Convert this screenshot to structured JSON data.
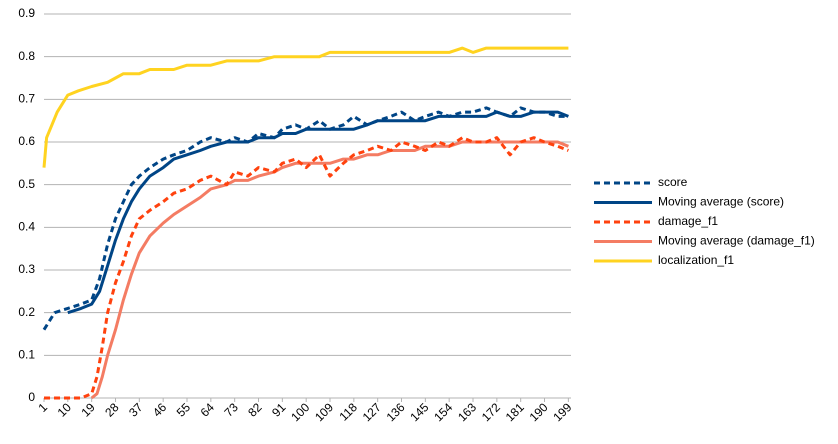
{
  "chart_data": {
    "type": "line",
    "title": "",
    "xlabel": "",
    "ylabel": "",
    "x_range": [
      1,
      200
    ],
    "x_tick_labels": [
      "1",
      "10",
      "19",
      "28",
      "37",
      "46",
      "55",
      "64",
      "73",
      "82",
      "91",
      "100",
      "109",
      "118",
      "127",
      "136",
      "145",
      "154",
      "163",
      "172",
      "181",
      "190",
      "199"
    ],
    "ylim": [
      0,
      0.9
    ],
    "y_ticks": [
      "0",
      "0.1",
      "0.2",
      "0.3",
      "0.4",
      "0.5",
      "0.6",
      "0.7",
      "0.8",
      "0.9"
    ],
    "grid": "horizontal",
    "legend": "right",
    "series": [
      {
        "name": "score",
        "style": "dashed",
        "color": "#004586",
        "points": [
          [
            1,
            0.16
          ],
          [
            5,
            0.2
          ],
          [
            10,
            0.21
          ],
          [
            15,
            0.22
          ],
          [
            19,
            0.23
          ],
          [
            22,
            0.28
          ],
          [
            25,
            0.36
          ],
          [
            28,
            0.42
          ],
          [
            31,
            0.46
          ],
          [
            34,
            0.5
          ],
          [
            37,
            0.52
          ],
          [
            41,
            0.54
          ],
          [
            46,
            0.56
          ],
          [
            50,
            0.57
          ],
          [
            55,
            0.58
          ],
          [
            60,
            0.6
          ],
          [
            64,
            0.61
          ],
          [
            70,
            0.6
          ],
          [
            73,
            0.61
          ],
          [
            78,
            0.6
          ],
          [
            82,
            0.62
          ],
          [
            88,
            0.61
          ],
          [
            91,
            0.63
          ],
          [
            96,
            0.64
          ],
          [
            100,
            0.63
          ],
          [
            105,
            0.65
          ],
          [
            109,
            0.63
          ],
          [
            114,
            0.64
          ],
          [
            118,
            0.66
          ],
          [
            123,
            0.64
          ],
          [
            127,
            0.65
          ],
          [
            132,
            0.66
          ],
          [
            136,
            0.67
          ],
          [
            141,
            0.65
          ],
          [
            145,
            0.66
          ],
          [
            150,
            0.67
          ],
          [
            154,
            0.66
          ],
          [
            159,
            0.67
          ],
          [
            163,
            0.67
          ],
          [
            168,
            0.68
          ],
          [
            172,
            0.67
          ],
          [
            177,
            0.66
          ],
          [
            181,
            0.68
          ],
          [
            186,
            0.67
          ],
          [
            190,
            0.67
          ],
          [
            195,
            0.66
          ],
          [
            199,
            0.66
          ]
        ]
      },
      {
        "name": "Moving average (score)",
        "style": "solid",
        "color": "#004586",
        "points": [
          [
            10,
            0.2
          ],
          [
            15,
            0.21
          ],
          [
            19,
            0.22
          ],
          [
            22,
            0.25
          ],
          [
            25,
            0.31
          ],
          [
            28,
            0.37
          ],
          [
            31,
            0.42
          ],
          [
            34,
            0.46
          ],
          [
            37,
            0.49
          ],
          [
            41,
            0.52
          ],
          [
            46,
            0.54
          ],
          [
            50,
            0.56
          ],
          [
            55,
            0.57
          ],
          [
            60,
            0.58
          ],
          [
            64,
            0.59
          ],
          [
            70,
            0.6
          ],
          [
            73,
            0.6
          ],
          [
            78,
            0.6
          ],
          [
            82,
            0.61
          ],
          [
            88,
            0.61
          ],
          [
            91,
            0.62
          ],
          [
            96,
            0.62
          ],
          [
            100,
            0.63
          ],
          [
            105,
            0.63
          ],
          [
            109,
            0.63
          ],
          [
            114,
            0.63
          ],
          [
            118,
            0.63
          ],
          [
            123,
            0.64
          ],
          [
            127,
            0.65
          ],
          [
            132,
            0.65
          ],
          [
            136,
            0.65
          ],
          [
            141,
            0.65
          ],
          [
            145,
            0.65
          ],
          [
            150,
            0.66
          ],
          [
            154,
            0.66
          ],
          [
            159,
            0.66
          ],
          [
            163,
            0.66
          ],
          [
            168,
            0.66
          ],
          [
            172,
            0.67
          ],
          [
            177,
            0.66
          ],
          [
            181,
            0.66
          ],
          [
            186,
            0.67
          ],
          [
            190,
            0.67
          ],
          [
            195,
            0.67
          ],
          [
            199,
            0.66
          ]
        ]
      },
      {
        "name": "damage_f1",
        "style": "dashed",
        "color": "#ff420e",
        "points": [
          [
            1,
            0.0
          ],
          [
            10,
            0.0
          ],
          [
            15,
            0.0
          ],
          [
            19,
            0.01
          ],
          [
            21,
            0.05
          ],
          [
            23,
            0.12
          ],
          [
            25,
            0.2
          ],
          [
            28,
            0.27
          ],
          [
            31,
            0.32
          ],
          [
            34,
            0.38
          ],
          [
            37,
            0.42
          ],
          [
            41,
            0.44
          ],
          [
            46,
            0.46
          ],
          [
            50,
            0.48
          ],
          [
            55,
            0.49
          ],
          [
            60,
            0.51
          ],
          [
            64,
            0.52
          ],
          [
            70,
            0.5
          ],
          [
            73,
            0.53
          ],
          [
            78,
            0.52
          ],
          [
            82,
            0.54
          ],
          [
            88,
            0.53
          ],
          [
            91,
            0.55
          ],
          [
            96,
            0.56
          ],
          [
            100,
            0.54
          ],
          [
            105,
            0.57
          ],
          [
            109,
            0.52
          ],
          [
            114,
            0.55
          ],
          [
            118,
            0.57
          ],
          [
            123,
            0.58
          ],
          [
            127,
            0.59
          ],
          [
            132,
            0.58
          ],
          [
            136,
            0.6
          ],
          [
            141,
            0.59
          ],
          [
            145,
            0.58
          ],
          [
            150,
            0.6
          ],
          [
            154,
            0.59
          ],
          [
            159,
            0.61
          ],
          [
            163,
            0.6
          ],
          [
            168,
            0.6
          ],
          [
            172,
            0.61
          ],
          [
            177,
            0.57
          ],
          [
            181,
            0.6
          ],
          [
            186,
            0.61
          ],
          [
            190,
            0.6
          ],
          [
            195,
            0.59
          ],
          [
            199,
            0.58
          ]
        ]
      },
      {
        "name": "Moving average (damage_f1)",
        "style": "solid",
        "color": "#f47c63",
        "points": [
          [
            19,
            0.0
          ],
          [
            21,
            0.01
          ],
          [
            23,
            0.05
          ],
          [
            25,
            0.1
          ],
          [
            28,
            0.16
          ],
          [
            31,
            0.23
          ],
          [
            34,
            0.29
          ],
          [
            37,
            0.34
          ],
          [
            41,
            0.38
          ],
          [
            46,
            0.41
          ],
          [
            50,
            0.43
          ],
          [
            55,
            0.45
          ],
          [
            60,
            0.47
          ],
          [
            64,
            0.49
          ],
          [
            70,
            0.5
          ],
          [
            73,
            0.51
          ],
          [
            78,
            0.51
          ],
          [
            82,
            0.52
          ],
          [
            88,
            0.53
          ],
          [
            91,
            0.54
          ],
          [
            96,
            0.55
          ],
          [
            100,
            0.55
          ],
          [
            105,
            0.55
          ],
          [
            109,
            0.55
          ],
          [
            114,
            0.56
          ],
          [
            118,
            0.56
          ],
          [
            123,
            0.57
          ],
          [
            127,
            0.57
          ],
          [
            132,
            0.58
          ],
          [
            136,
            0.58
          ],
          [
            141,
            0.58
          ],
          [
            145,
            0.59
          ],
          [
            150,
            0.59
          ],
          [
            154,
            0.59
          ],
          [
            159,
            0.6
          ],
          [
            163,
            0.6
          ],
          [
            168,
            0.6
          ],
          [
            172,
            0.6
          ],
          [
            177,
            0.6
          ],
          [
            181,
            0.6
          ],
          [
            186,
            0.6
          ],
          [
            190,
            0.6
          ],
          [
            195,
            0.6
          ],
          [
            199,
            0.59
          ]
        ]
      },
      {
        "name": "localization_f1",
        "style": "solid",
        "color": "#ffd320",
        "points": [
          [
            1,
            0.54
          ],
          [
            2,
            0.61
          ],
          [
            4,
            0.64
          ],
          [
            6,
            0.67
          ],
          [
            8,
            0.69
          ],
          [
            10,
            0.71
          ],
          [
            14,
            0.72
          ],
          [
            19,
            0.73
          ],
          [
            25,
            0.74
          ],
          [
            28,
            0.75
          ],
          [
            31,
            0.76
          ],
          [
            37,
            0.76
          ],
          [
            41,
            0.77
          ],
          [
            46,
            0.77
          ],
          [
            50,
            0.77
          ],
          [
            55,
            0.78
          ],
          [
            60,
            0.78
          ],
          [
            64,
            0.78
          ],
          [
            70,
            0.79
          ],
          [
            73,
            0.79
          ],
          [
            78,
            0.79
          ],
          [
            82,
            0.79
          ],
          [
            88,
            0.8
          ],
          [
            91,
            0.8
          ],
          [
            96,
            0.8
          ],
          [
            100,
            0.8
          ],
          [
            105,
            0.8
          ],
          [
            109,
            0.81
          ],
          [
            114,
            0.81
          ],
          [
            118,
            0.81
          ],
          [
            123,
            0.81
          ],
          [
            127,
            0.81
          ],
          [
            132,
            0.81
          ],
          [
            136,
            0.81
          ],
          [
            141,
            0.81
          ],
          [
            145,
            0.81
          ],
          [
            150,
            0.81
          ],
          [
            154,
            0.81
          ],
          [
            159,
            0.82
          ],
          [
            163,
            0.81
          ],
          [
            168,
            0.82
          ],
          [
            172,
            0.82
          ],
          [
            177,
            0.82
          ],
          [
            181,
            0.82
          ],
          [
            186,
            0.82
          ],
          [
            190,
            0.82
          ],
          [
            195,
            0.82
          ],
          [
            199,
            0.82
          ]
        ]
      }
    ]
  }
}
